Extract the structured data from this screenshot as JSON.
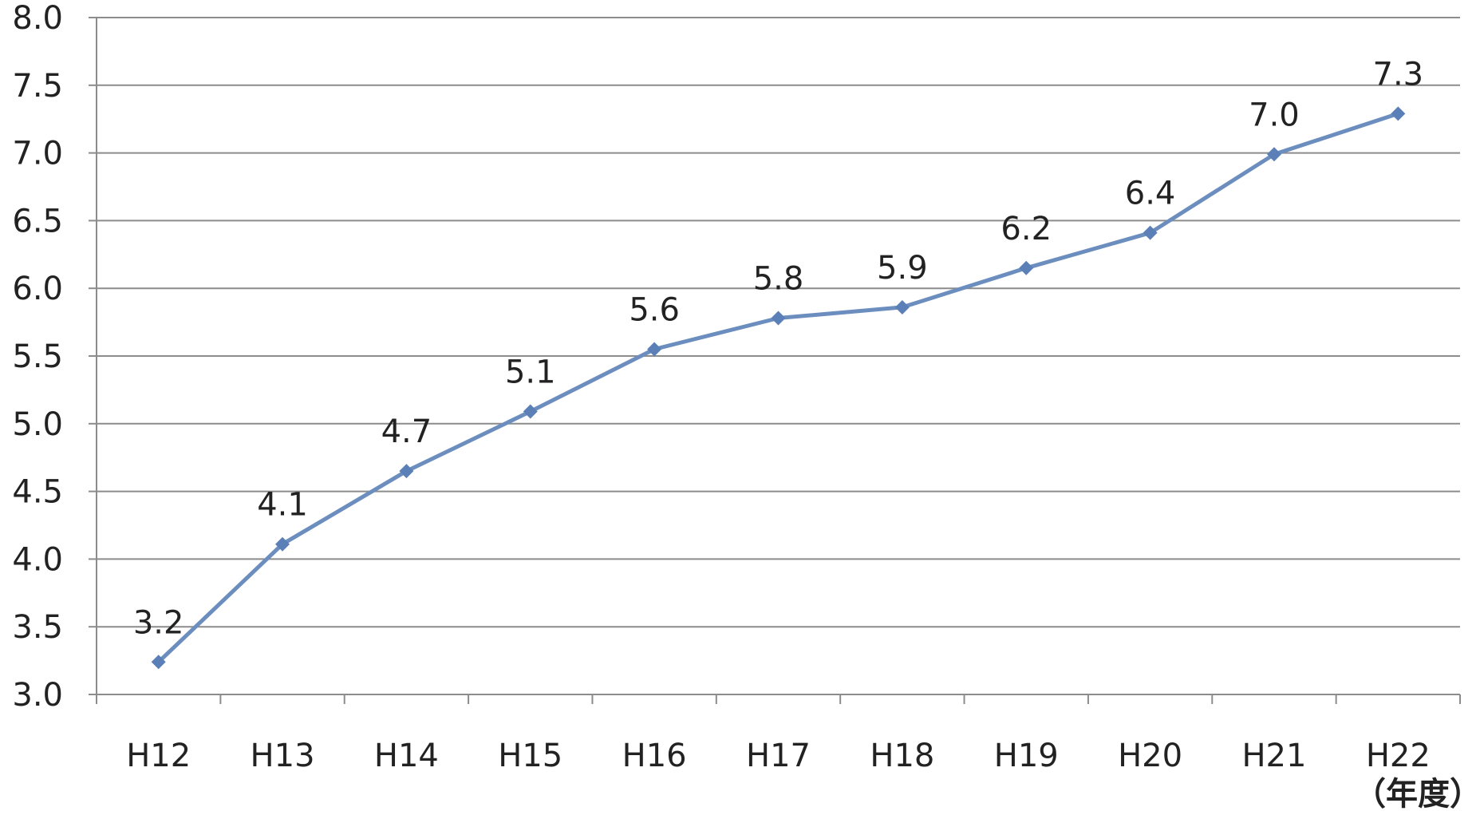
{
  "chart_data": {
    "type": "line",
    "categories": [
      "H12",
      "H13",
      "H14",
      "H15",
      "H16",
      "H17",
      "H18",
      "H19",
      "H20",
      "H21",
      "H22"
    ],
    "series": [
      {
        "values": [
          3.24,
          4.11,
          4.65,
          5.09,
          5.55,
          5.78,
          5.86,
          6.15,
          6.41,
          6.99,
          7.29
        ],
        "data_labels": [
          "3.2",
          "4.1",
          "4.7",
          "5.1",
          "5.6",
          "5.8",
          "5.9",
          "6.2",
          "6.4",
          "7.0",
          "7.3"
        ]
      }
    ],
    "x_unit_label": "（年度）",
    "ylim": [
      3.0,
      8.0
    ],
    "yticks": [
      "3.0",
      "3.5",
      "4.0",
      "4.5",
      "5.0",
      "5.5",
      "6.0",
      "6.5",
      "7.0",
      "7.5",
      "8.0"
    ],
    "grid": "horizontal",
    "legend": "none",
    "colors": {
      "line": "#6c8ebf",
      "marker": "#5b7fb7",
      "grid": "#8c8c8c",
      "axis": "#8c8c8c",
      "text": "#222222"
    }
  }
}
